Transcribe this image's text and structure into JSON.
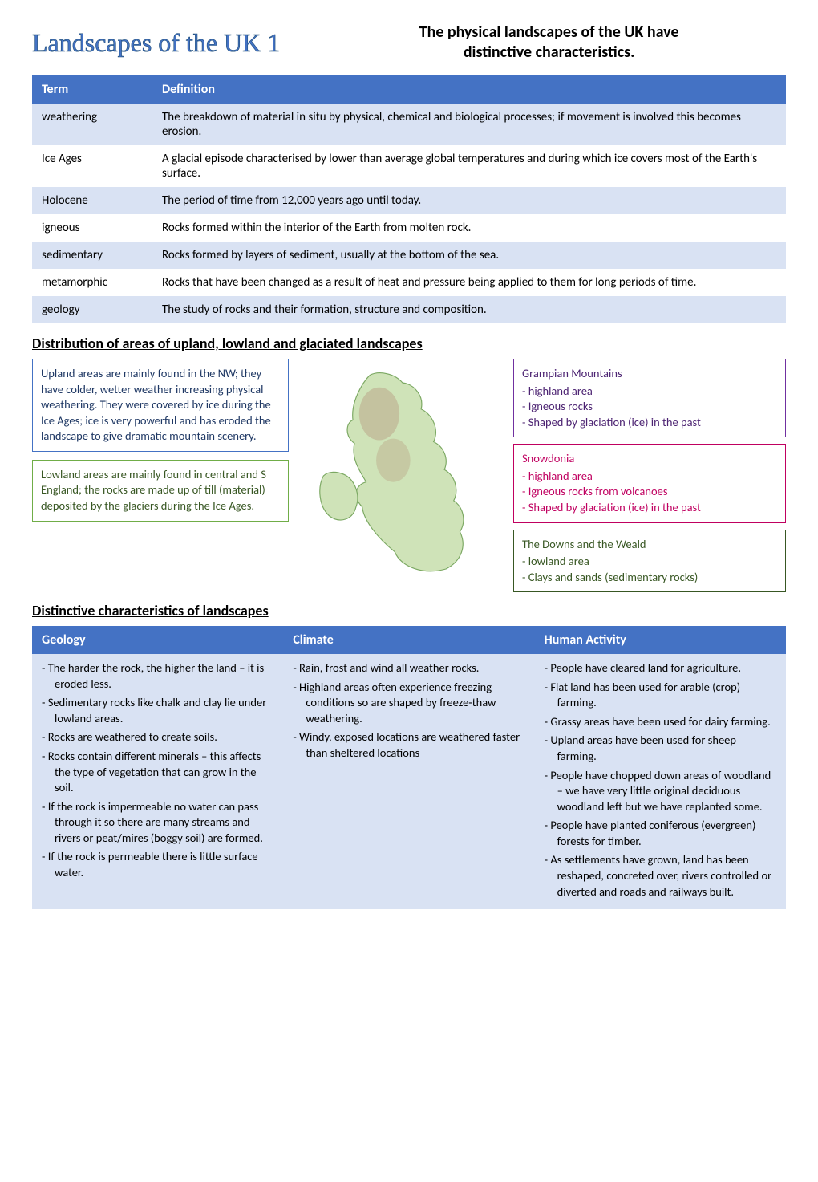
{
  "header": {
    "main_title": "Landscapes of the UK 1",
    "subtitle_line1": "The physical landscapes of the UK have",
    "subtitle_line2": "distinctive characteristics."
  },
  "def_table": {
    "headers": [
      "Term",
      "Definition"
    ],
    "rows": [
      [
        "weathering",
        "The breakdown of material in situ by physical, chemical and biological processes; if movement is involved this becomes erosion."
      ],
      [
        "Ice Ages",
        "A glacial episode characterised by lower than average global temperatures and during which ice covers most of the Earth's surface."
      ],
      [
        "Holocene",
        "The period of time from 12,000 years ago until today."
      ],
      [
        "igneous",
        "Rocks formed within the interior of the Earth from molten rock."
      ],
      [
        "sedimentary",
        "Rocks formed by layers of sediment, usually at the bottom of the sea."
      ],
      [
        "metamorphic",
        "Rocks that have been changed as a result of heat and pressure being applied to them for long periods of time."
      ],
      [
        "geology",
        "The study of rocks and their formation, structure and composition."
      ]
    ]
  },
  "dist": {
    "heading": "Distribution of areas of upland, lowland and glaciated landscapes",
    "upland_box": "Upland areas are mainly found in the NW; they have colder, wetter weather increasing physical weathering. They were covered by ice during the Ice Ages; ice is very powerful and has eroded the landscape to give dramatic mountain scenery.",
    "lowland_box": "Lowland areas are mainly found in central and S England; the rocks are made up of till (material) deposited by the glaciers during the Ice Ages.",
    "grampian": {
      "title": "Grampian Mountains",
      "items": [
        "highland area",
        "Igneous rocks",
        "Shaped by glaciation (ice) in the past"
      ]
    },
    "snowdonia": {
      "title": "Snowdonia",
      "items": [
        "highland area",
        "Igneous rocks from volcanoes",
        "Shaped by glaciation (ice) in the past"
      ]
    },
    "downs": {
      "title": "The Downs and the Weald",
      "items": [
        "lowland area",
        "Clays and sands (sedimentary rocks)"
      ]
    }
  },
  "char": {
    "heading": "Distinctive characteristics of landscapes",
    "headers": [
      "Geology",
      "Climate",
      "Human Activity"
    ],
    "geology": [
      "The harder the rock, the higher the land – it is eroded less.",
      "Sedimentary rocks like chalk and clay lie under lowland areas.",
      "Rocks are weathered to create soils.",
      "Rocks contain different minerals – this affects the type of vegetation that can grow in the soil.",
      "If the rock is impermeable no water can pass through it so there are many streams and rivers or peat/mires (boggy soil) are formed.",
      "If the rock is permeable there is little surface water."
    ],
    "climate": [
      "Rain, frost and wind all weather rocks.",
      "Highland areas often experience freezing conditions so are shaped by freeze-thaw weathering.",
      "Windy, exposed locations are weathered faster than sheltered locations"
    ],
    "human": [
      "People have cleared land for agriculture.",
      "Flat land has been used for arable (crop) farming.",
      "Grassy areas have been used for dairy farming.",
      "Upland areas have been used for sheep farming.",
      "People have chopped down areas of woodland – we have very little original deciduous woodland left but we have replanted some.",
      "People have planted coniferous (evergreen) forests for timber.",
      "As settlements have grown, land has been reshaped, concreted over, rivers controlled or diverted and roads and railways built."
    ]
  },
  "colors": {
    "header_blue": "#4472c4",
    "row_tint": "#d9e2f3"
  }
}
